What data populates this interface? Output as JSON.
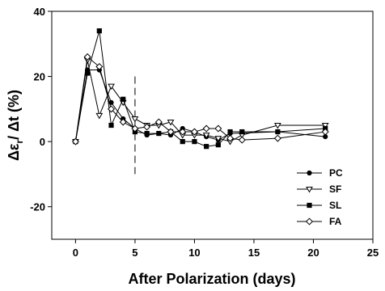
{
  "chart_data": {
    "type": "line",
    "xlabel": "After Polarization (days)",
    "ylabel_parts": {
      "main": "Δε",
      "sub": "r",
      "tail": "/ Δt (%)"
    },
    "xlim": [
      -2,
      25
    ],
    "ylim": [
      -30,
      40
    ],
    "xticks": [
      0,
      5,
      10,
      15,
      20,
      25
    ],
    "yticks": [
      -20,
      0,
      20,
      40
    ],
    "grid": false,
    "legend_position": "bottom-right",
    "vline": {
      "x": 5,
      "y_range": [
        -10,
        20
      ],
      "style": "dashed"
    },
    "series": [
      {
        "name": "PC",
        "marker": "filled-circle",
        "x": [
          0,
          1,
          2,
          3,
          4,
          5,
          6,
          7,
          8,
          9,
          10,
          11,
          12,
          13,
          17,
          21
        ],
        "y": [
          0,
          22,
          22,
          12,
          7,
          4,
          2,
          2.5,
          2,
          4,
          3,
          1.5,
          0.5,
          2.5,
          3,
          1.5
        ]
      },
      {
        "name": "SF",
        "marker": "open-triangle-down",
        "x": [
          0,
          1,
          2,
          3,
          4,
          5,
          6,
          7,
          8,
          9,
          10,
          11,
          12,
          13,
          14,
          17,
          21
        ],
        "y": [
          0,
          25,
          8,
          17,
          12,
          7,
          5,
          5,
          6,
          2,
          2,
          2,
          1,
          0,
          2,
          5,
          5
        ]
      },
      {
        "name": "SL",
        "marker": "filled-square",
        "x": [
          0,
          1,
          2,
          3,
          4,
          5,
          6,
          7,
          8,
          9,
          10,
          11,
          12,
          13,
          14,
          17,
          21
        ],
        "y": [
          0,
          21,
          34,
          5,
          13,
          3,
          2.5,
          2.5,
          3,
          0,
          0,
          -1.5,
          -1,
          3,
          3,
          3,
          4
        ]
      },
      {
        "name": "FA",
        "marker": "open-diamond",
        "x": [
          0,
          1,
          2,
          3,
          4,
          5,
          6,
          7,
          8,
          9,
          10,
          11,
          12,
          13,
          14,
          17,
          21
        ],
        "y": [
          0,
          26,
          23,
          10,
          6,
          4,
          4.5,
          6,
          3,
          3,
          3,
          4,
          4,
          1,
          0.5,
          1,
          3
        ]
      }
    ]
  }
}
